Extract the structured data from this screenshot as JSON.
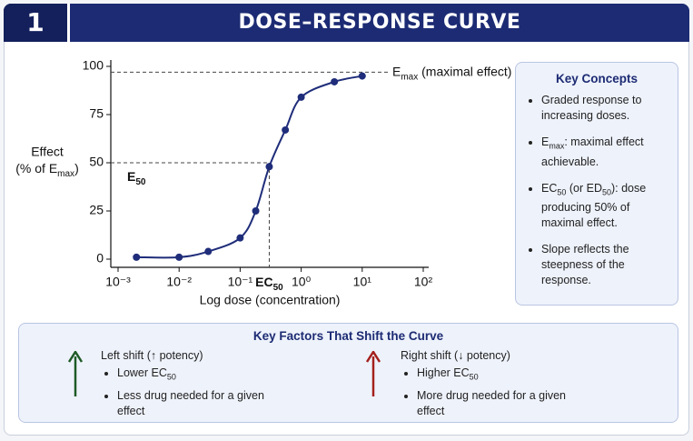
{
  "header": {
    "number": "1",
    "title": "DOSE–RESPONSE CURVE"
  },
  "chart_data": {
    "type": "line",
    "x_label": "Log dose (concentration)",
    "y_label": {
      "line1": "Effect",
      "line2": [
        "(% of E",
        "max",
        ")"
      ]
    },
    "x": [
      0.002,
      0.01,
      0.03,
      0.1,
      0.18,
      0.3,
      0.55,
      1,
      3.5,
      10
    ],
    "values": [
      1,
      1,
      4,
      11,
      25,
      48,
      67,
      84,
      92,
      95
    ],
    "color": "#1f2d7a",
    "markers": true,
    "x_log": true,
    "xlim": [
      0.001,
      100
    ],
    "xticks": [
      {
        "value": 0.001,
        "label": "10⁻³"
      },
      {
        "value": 0.01,
        "label": "10⁻²"
      },
      {
        "value": 0.1,
        "label": "10⁻¹"
      },
      {
        "value": 1,
        "label": "10⁰"
      },
      {
        "value": 10,
        "label": "10¹"
      },
      {
        "value": 100,
        "label": "10²"
      }
    ],
    "ylim": [
      0,
      100
    ],
    "yticks": [
      0,
      25,
      50,
      75,
      100
    ],
    "annotations": {
      "emax": {
        "y": 97,
        "label": [
          "E",
          "max",
          " (maximal effect)"
        ]
      },
      "e50": {
        "y": 50,
        "label": [
          "E",
          "50"
        ]
      },
      "ec50": {
        "x": 0.3,
        "label": [
          "EC",
          "50"
        ]
      }
    }
  },
  "key_concepts": {
    "title": "Key Concepts",
    "items": [
      [
        "Graded response to increasing doses."
      ],
      [
        "E",
        "max",
        ": maximal effect achievable."
      ],
      [
        "EC",
        "50",
        " (or ED",
        "50",
        "): dose producing 50% of maximal effect."
      ],
      [
        "Slope reflects the steepness of the response."
      ]
    ]
  },
  "shift_factors": {
    "title": "Key Factors That Shift the Curve",
    "left": {
      "heading": "Left shift (↑ potency)",
      "items": [
        [
          "Lower EC",
          "50"
        ],
        [
          "Less drug needed for a given effect"
        ]
      ]
    },
    "right": {
      "heading": "Right shift (↓ potency)",
      "items": [
        [
          "Higher EC",
          "50"
        ],
        [
          "More drug needed for a given effect"
        ]
      ]
    }
  }
}
